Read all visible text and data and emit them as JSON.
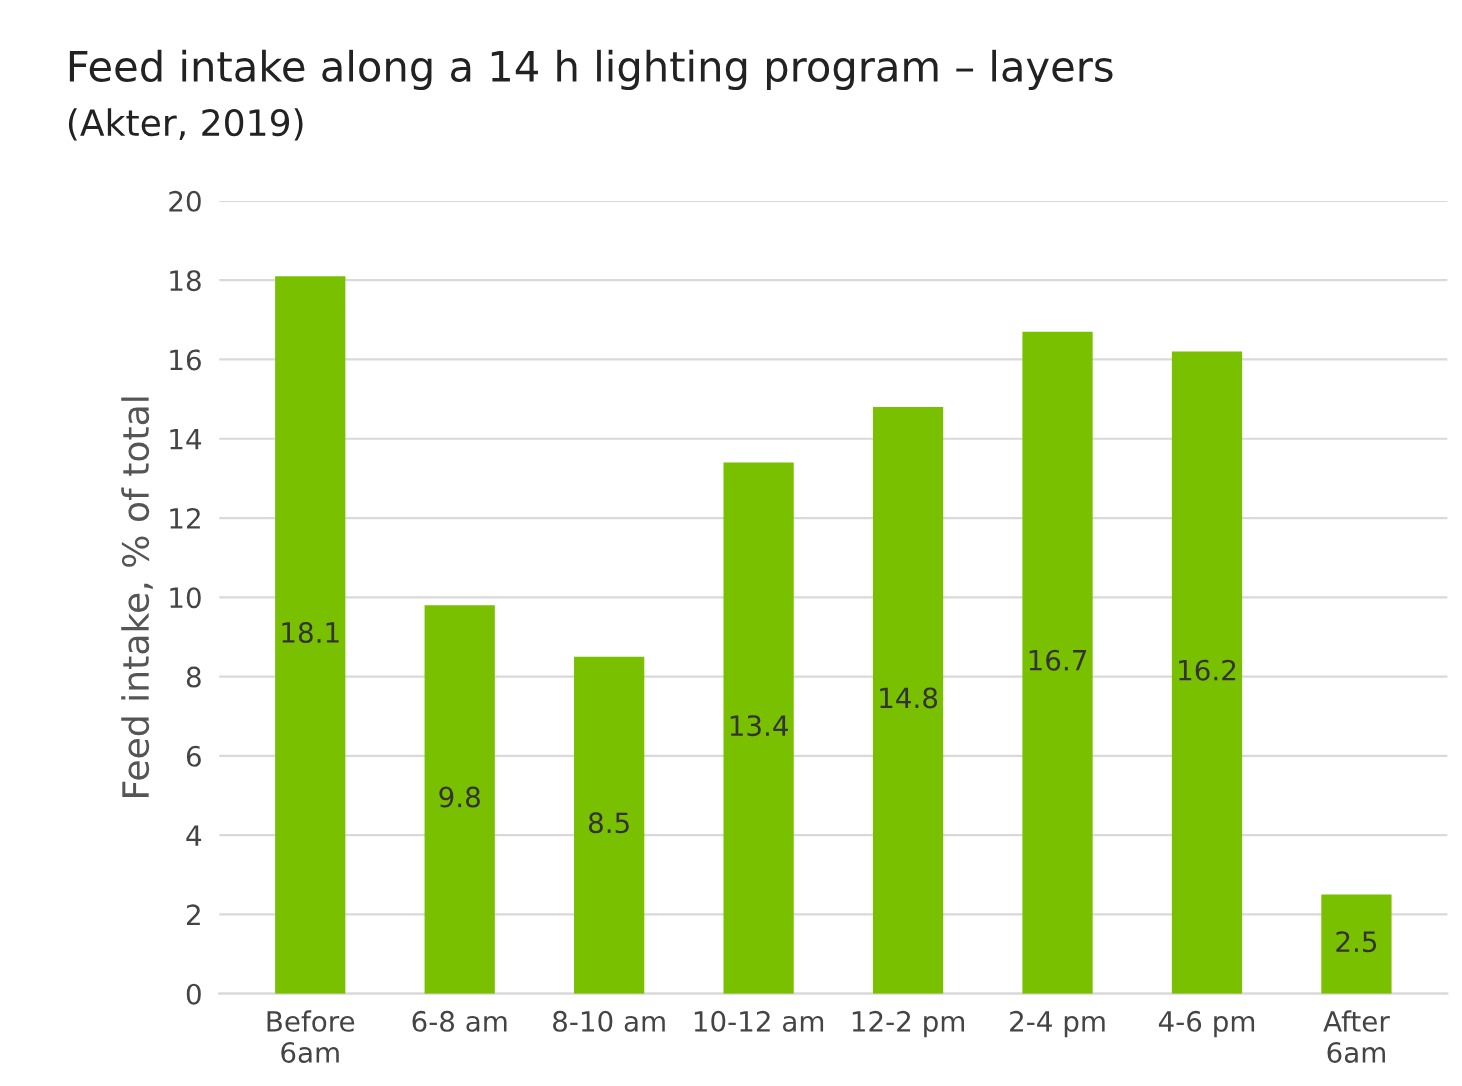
{
  "chart_data": {
    "type": "bar",
    "title": "Feed intake along a 14 h lighting program – layers",
    "subtitle": "(Akter, 2019)",
    "ylabel": "Feed intake, % of total",
    "categories": [
      "Before\n6am",
      "6-8 am",
      "8-10 am",
      "10-12 am",
      "12-2 pm",
      "2-4 pm",
      "4-6 pm",
      "After\n6am"
    ],
    "values": [
      18.1,
      9.8,
      8.5,
      13.4,
      14.8,
      16.7,
      16.2,
      2.5
    ],
    "color": "#78c000",
    "ylim": [
      0,
      20
    ],
    "yticks": [
      0,
      2,
      4,
      6,
      8,
      10,
      12,
      14,
      16,
      18,
      20
    ],
    "grid": "y",
    "data_labels": true
  }
}
